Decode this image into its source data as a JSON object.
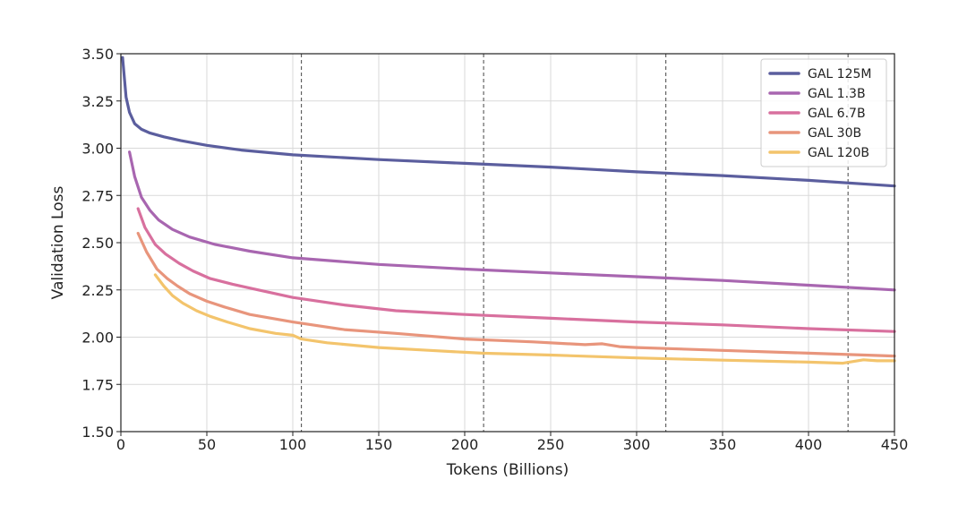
{
  "chart_data": {
    "type": "line",
    "title": "",
    "xlabel": "Tokens (Billions)",
    "ylabel": "Validation Loss",
    "xlim": [
      0,
      450
    ],
    "ylim": [
      1.5,
      3.5
    ],
    "xticks": [
      0,
      50,
      100,
      150,
      200,
      250,
      300,
      350,
      400,
      450
    ],
    "xtick_labels": [
      "0",
      "50",
      "100",
      "150",
      "200",
      "250",
      "300",
      "350",
      "400",
      "450"
    ],
    "yticks": [
      1.5,
      1.75,
      2.0,
      2.25,
      2.5,
      2.75,
      3.0,
      3.25,
      3.5
    ],
    "ytick_labels": [
      "1.50",
      "1.75",
      "2.00",
      "2.25",
      "2.50",
      "2.75",
      "3.00",
      "3.25",
      "3.50"
    ],
    "grid": true,
    "legend_position": "top-right",
    "vlines": [
      105,
      211,
      317,
      423
    ],
    "series": [
      {
        "name": "GAL 125M",
        "color": "#5b5e9e",
        "x": [
          1,
          3,
          5,
          8,
          12,
          17,
          25,
          35,
          50,
          70,
          100,
          150,
          200,
          250,
          300,
          350,
          400,
          450
        ],
        "y": [
          3.48,
          3.27,
          3.19,
          3.13,
          3.1,
          3.08,
          3.06,
          3.04,
          3.015,
          2.99,
          2.965,
          2.94,
          2.92,
          2.9,
          2.875,
          2.855,
          2.83,
          2.8
        ]
      },
      {
        "name": "GAL 1.3B",
        "color": "#a866b0",
        "x": [
          5,
          8,
          12,
          17,
          22,
          30,
          40,
          55,
          75,
          100,
          150,
          200,
          250,
          300,
          350,
          400,
          450
        ],
        "y": [
          2.98,
          2.85,
          2.74,
          2.67,
          2.62,
          2.57,
          2.53,
          2.49,
          2.455,
          2.42,
          2.385,
          2.36,
          2.34,
          2.32,
          2.3,
          2.275,
          2.25
        ]
      },
      {
        "name": "GAL 6.7B",
        "color": "#d8709e",
        "x": [
          10,
          14,
          20,
          26,
          34,
          42,
          52,
          65,
          80,
          100,
          130,
          160,
          200,
          250,
          300,
          350,
          400,
          450
        ],
        "y": [
          2.68,
          2.58,
          2.49,
          2.44,
          2.39,
          2.35,
          2.31,
          2.28,
          2.25,
          2.21,
          2.17,
          2.14,
          2.12,
          2.1,
          2.08,
          2.065,
          2.045,
          2.03
        ]
      },
      {
        "name": "GAL 30B",
        "color": "#e8957c",
        "x": [
          10,
          15,
          21,
          27,
          33,
          40,
          50,
          60,
          75,
          100,
          130,
          160,
          200,
          240,
          270,
          280,
          290,
          300,
          350,
          400,
          450
        ],
        "y": [
          2.55,
          2.45,
          2.36,
          2.31,
          2.27,
          2.23,
          2.19,
          2.16,
          2.12,
          2.08,
          2.04,
          2.02,
          1.99,
          1.975,
          1.96,
          1.965,
          1.95,
          1.945,
          1.93,
          1.915,
          1.9
        ]
      },
      {
        "name": "GAL 120B",
        "color": "#f3c46c",
        "x": [
          20,
          25,
          30,
          36,
          44,
          52,
          62,
          75,
          90,
          100,
          105,
          120,
          150,
          180,
          200,
          210,
          250,
          300,
          350,
          400,
          420,
          432,
          440,
          450
        ],
        "y": [
          2.33,
          2.27,
          2.22,
          2.18,
          2.14,
          2.11,
          2.08,
          2.045,
          2.02,
          2.01,
          1.99,
          1.97,
          1.945,
          1.93,
          1.92,
          1.915,
          1.905,
          1.89,
          1.878,
          1.868,
          1.862,
          1.88,
          1.875,
          1.875
        ]
      }
    ]
  }
}
